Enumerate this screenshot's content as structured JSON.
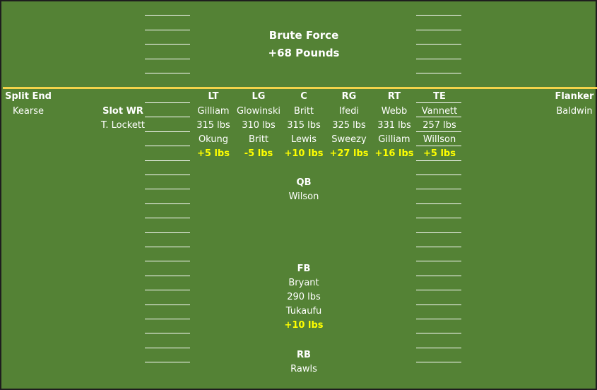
{
  "formation": {
    "title": "Brute Force",
    "subtitle": "+68 Pounds"
  },
  "split_end": {
    "label": "Split End",
    "name": "Kearse"
  },
  "slot_wr": {
    "label": "Slot WR",
    "name": "T. Lockett"
  },
  "flanker": {
    "label": "Flanker",
    "name": "Baldwin"
  },
  "line": [
    {
      "pos": "LT",
      "starter": "Gilliam",
      "weight": "315 lbs",
      "sub": "Okung",
      "delta": "+5 lbs"
    },
    {
      "pos": "LG",
      "starter": "Glowinski",
      "weight": "310 lbs",
      "sub": "Britt",
      "delta": "-5 lbs"
    },
    {
      "pos": "C",
      "starter": "Britt",
      "weight": "315 lbs",
      "sub": "Lewis",
      "delta": "+10 lbs"
    },
    {
      "pos": "RG",
      "starter": "Ifedi",
      "weight": "325 lbs",
      "sub": "Sweezy",
      "delta": "+27 lbs"
    },
    {
      "pos": "RT",
      "starter": "Webb",
      "weight": "331 lbs",
      "sub": "Gilliam",
      "delta": "+16 lbs"
    },
    {
      "pos": "TE",
      "starter": "Vannett",
      "weight": "257 lbs",
      "sub": "Willson",
      "delta": "+5 lbs"
    }
  ],
  "qb": {
    "label": "QB",
    "name": "Wilson"
  },
  "fb": {
    "label": "FB",
    "starter": "Bryant",
    "weight": "290 lbs",
    "sub": "Tukaufu",
    "delta": "+10 lbs"
  },
  "rb": {
    "label": "RB",
    "name": "Rawls"
  },
  "colors": {
    "field": "#548235",
    "line_of_scrimmage": "#f3d34a",
    "weight_delta": "#ffff00",
    "text": "#ffffff"
  }
}
